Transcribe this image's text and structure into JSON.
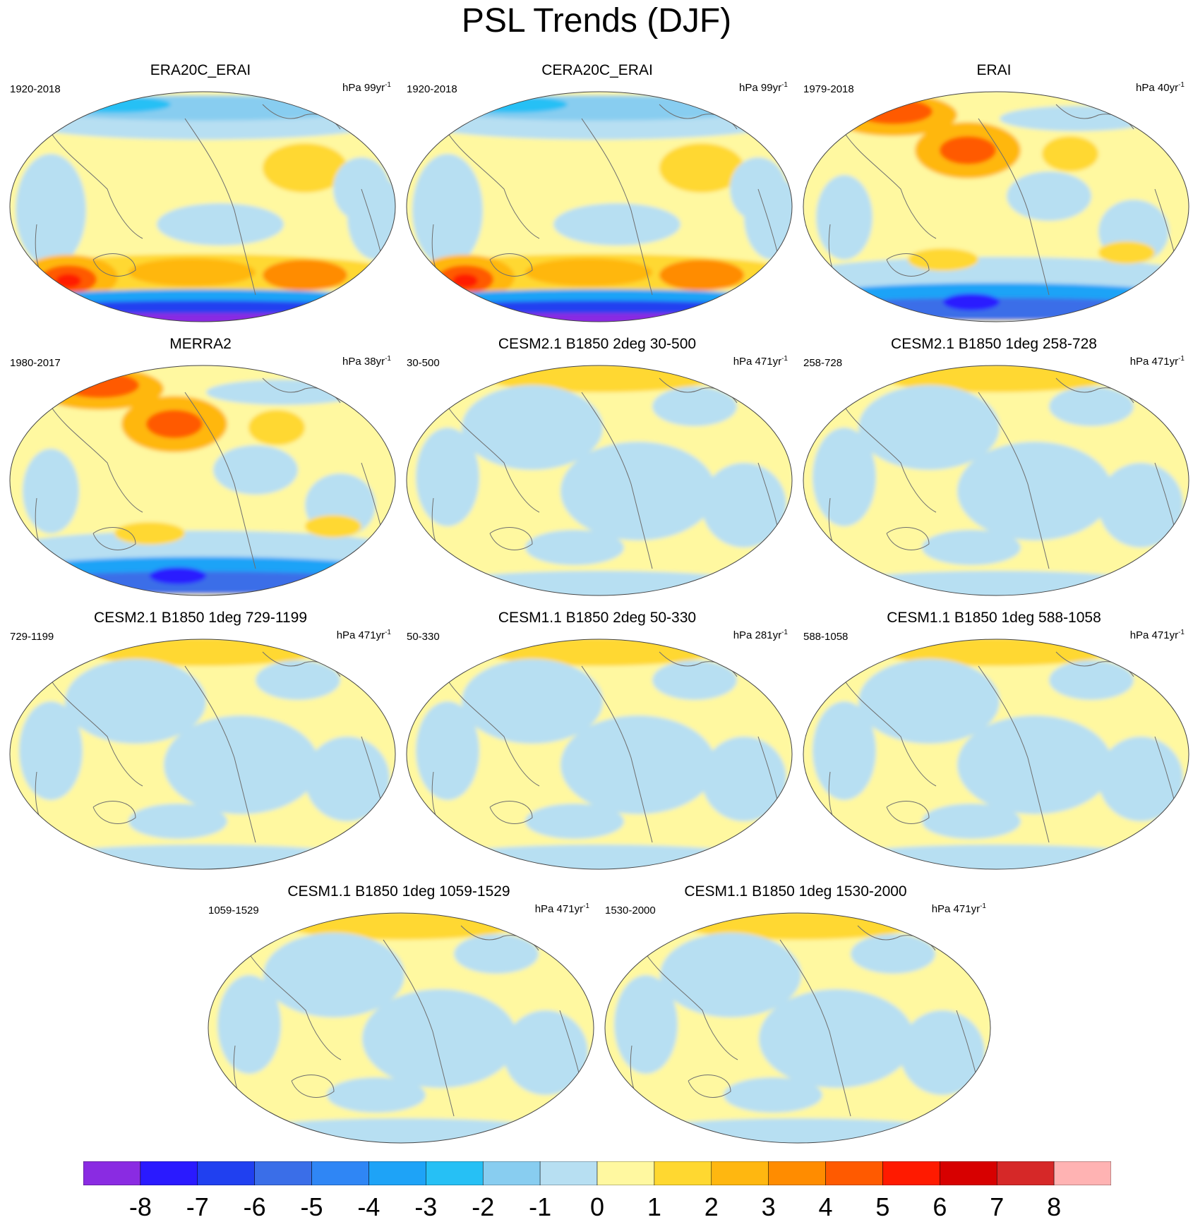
{
  "title": "PSL Trends (DJF)",
  "panels": [
    {
      "title": "ERA20C_ERAI",
      "period": "1920-2018",
      "units": "hPa 99yr",
      "units_exp": "-1",
      "pattern": "strong_sh"
    },
    {
      "title": "CERA20C_ERAI",
      "period": "1920-2018",
      "units": "hPa 99yr",
      "units_exp": "-1",
      "pattern": "strong_sh"
    },
    {
      "title": "ERAI",
      "period": "1979-2018",
      "units": "hPa 40yr",
      "units_exp": "-1",
      "pattern": "strong_nh"
    },
    {
      "title": "MERRA2",
      "period": "1980-2017",
      "units": "hPa 38yr",
      "units_exp": "-1",
      "pattern": "strong_nh"
    },
    {
      "title": "CESM2.1 B1850 2deg 30-500",
      "period": "30-500",
      "units": "hPa 471yr",
      "units_exp": "-1",
      "pattern": "weak"
    },
    {
      "title": "CESM2.1 B1850 1deg 258-728",
      "period": "258-728",
      "units": "hPa 471yr",
      "units_exp": "-1",
      "pattern": "weak"
    },
    {
      "title": "CESM2.1 B1850 1deg 729-1199",
      "period": "729-1199",
      "units": "hPa 471yr",
      "units_exp": "-1",
      "pattern": "weak"
    },
    {
      "title": "CESM1.1 B1850 2deg 50-330",
      "period": "50-330",
      "units": "hPa 281yr",
      "units_exp": "-1",
      "pattern": "weak"
    },
    {
      "title": "CESM1.1 B1850 1deg 588-1058",
      "period": "588-1058",
      "units": "hPa 471yr",
      "units_exp": "-1",
      "pattern": "weak"
    },
    {
      "title": "CESM1.1 B1850 1deg 1059-1529",
      "period": "1059-1529",
      "units": "hPa 471yr",
      "units_exp": "-1",
      "pattern": "weak"
    },
    {
      "title": "CESM1.1 B1850 1deg 1530-2000",
      "period": "1530-2000",
      "units": "hPa 471yr",
      "units_exp": "-1",
      "pattern": "weak"
    }
  ],
  "colorbar": {
    "labels": [
      "-8",
      "-7",
      "-6",
      "-5",
      "-4",
      "-3",
      "-2",
      "-1",
      "0",
      "1",
      "2",
      "3",
      "4",
      "5",
      "6",
      "7",
      "8"
    ],
    "colors": [
      "#8a2be2",
      "#2a1aff",
      "#2040f0",
      "#3a6ee8",
      "#2f86f5",
      "#1ea3f7",
      "#26c0f5",
      "#88cdf0",
      "#b7dff2",
      "#fff8a0",
      "#ffd830",
      "#ffb710",
      "#ff8c00",
      "#ff5a00",
      "#ff1a00",
      "#d70000",
      "#d62828",
      "#ffb3b3"
    ]
  }
}
